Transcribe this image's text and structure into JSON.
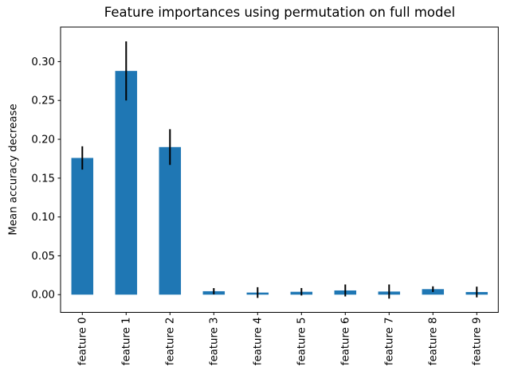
{
  "figure": {
    "background": "#ffffff"
  },
  "chart_data": {
    "type": "bar",
    "title": "Feature importances using permutation on full model",
    "ylabel": "Mean accuracy decrease",
    "xlabel": "",
    "categories": [
      "feature 0",
      "feature 1",
      "feature 2",
      "feature 3",
      "feature 4",
      "feature 5",
      "feature 6",
      "feature 7",
      "feature 8",
      "feature 9"
    ],
    "values": [
      0.176,
      0.288,
      0.19,
      0.0044,
      0.0027,
      0.0037,
      0.0054,
      0.004,
      0.0071,
      0.0034
    ],
    "errors": [
      0.015,
      0.038,
      0.023,
      0.004,
      0.0069,
      0.0048,
      0.0077,
      0.0091,
      0.0036,
      0.0069
    ],
    "yticks": [
      0.0,
      0.05,
      0.1,
      0.15,
      0.2,
      0.25,
      0.3
    ],
    "ytick_labels": [
      "0.00",
      "0.05",
      "0.10",
      "0.15",
      "0.20",
      "0.25",
      "0.30"
    ],
    "ylim": [
      -0.0228,
      0.3445
    ],
    "grid": false,
    "legend": "none",
    "bar_color": "#1f77b4",
    "error_color": "#000000",
    "spine_color": "#000000"
  }
}
